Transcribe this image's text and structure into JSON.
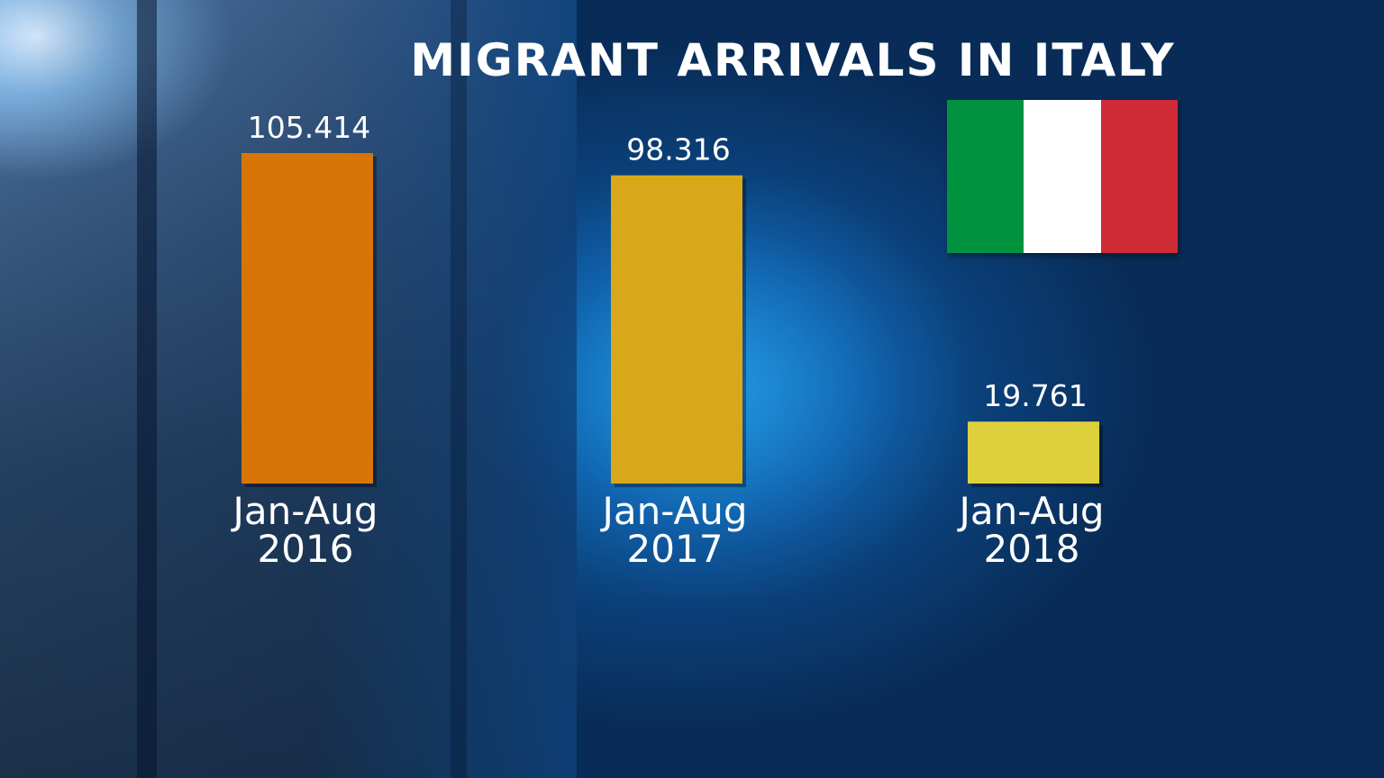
{
  "title": "MIGRANT ARRIVALS IN ITALY",
  "flag": {
    "colors": [
      "#00923f",
      "#ffffff",
      "#cf2b37"
    ],
    "name": "italy-flag"
  },
  "chart_data": {
    "type": "bar",
    "title": "MIGRANT ARRIVALS IN ITALY",
    "categories": [
      [
        "Jan-Aug",
        "2016"
      ],
      [
        "Jan-Aug",
        "2017"
      ],
      [
        "Jan-Aug",
        "2018"
      ]
    ],
    "values": [
      105414,
      98316,
      19761
    ],
    "value_labels": [
      "105.414",
      "98.316",
      "19.761"
    ],
    "bar_colors": [
      "#d87506",
      "#d8a81a",
      "#ddd03c"
    ],
    "xlabel": "",
    "ylabel": "",
    "ylim": [
      0,
      105414
    ],
    "grid": false
  }
}
